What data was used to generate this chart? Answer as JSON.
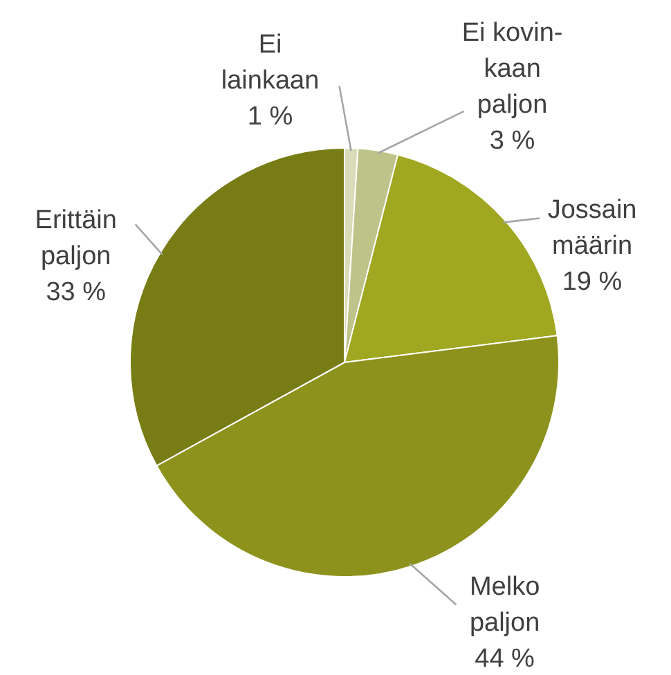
{
  "chart_data": {
    "type": "pie",
    "categories": [
      "Ei\nlainkaan",
      "Ei kovin-\nkaan\npaljon",
      "Jossain\nmäärin",
      "Melko\npaljon",
      "Erittäin\npaljon"
    ],
    "values": [
      1,
      3,
      19,
      44,
      33
    ],
    "value_labels": [
      "1 %",
      "3 %",
      "19 %",
      "44 %",
      "33 %"
    ],
    "colors": [
      "#d9dcb8",
      "#bec38a",
      "#a0a720",
      "#8c921c",
      "#787c14"
    ]
  }
}
